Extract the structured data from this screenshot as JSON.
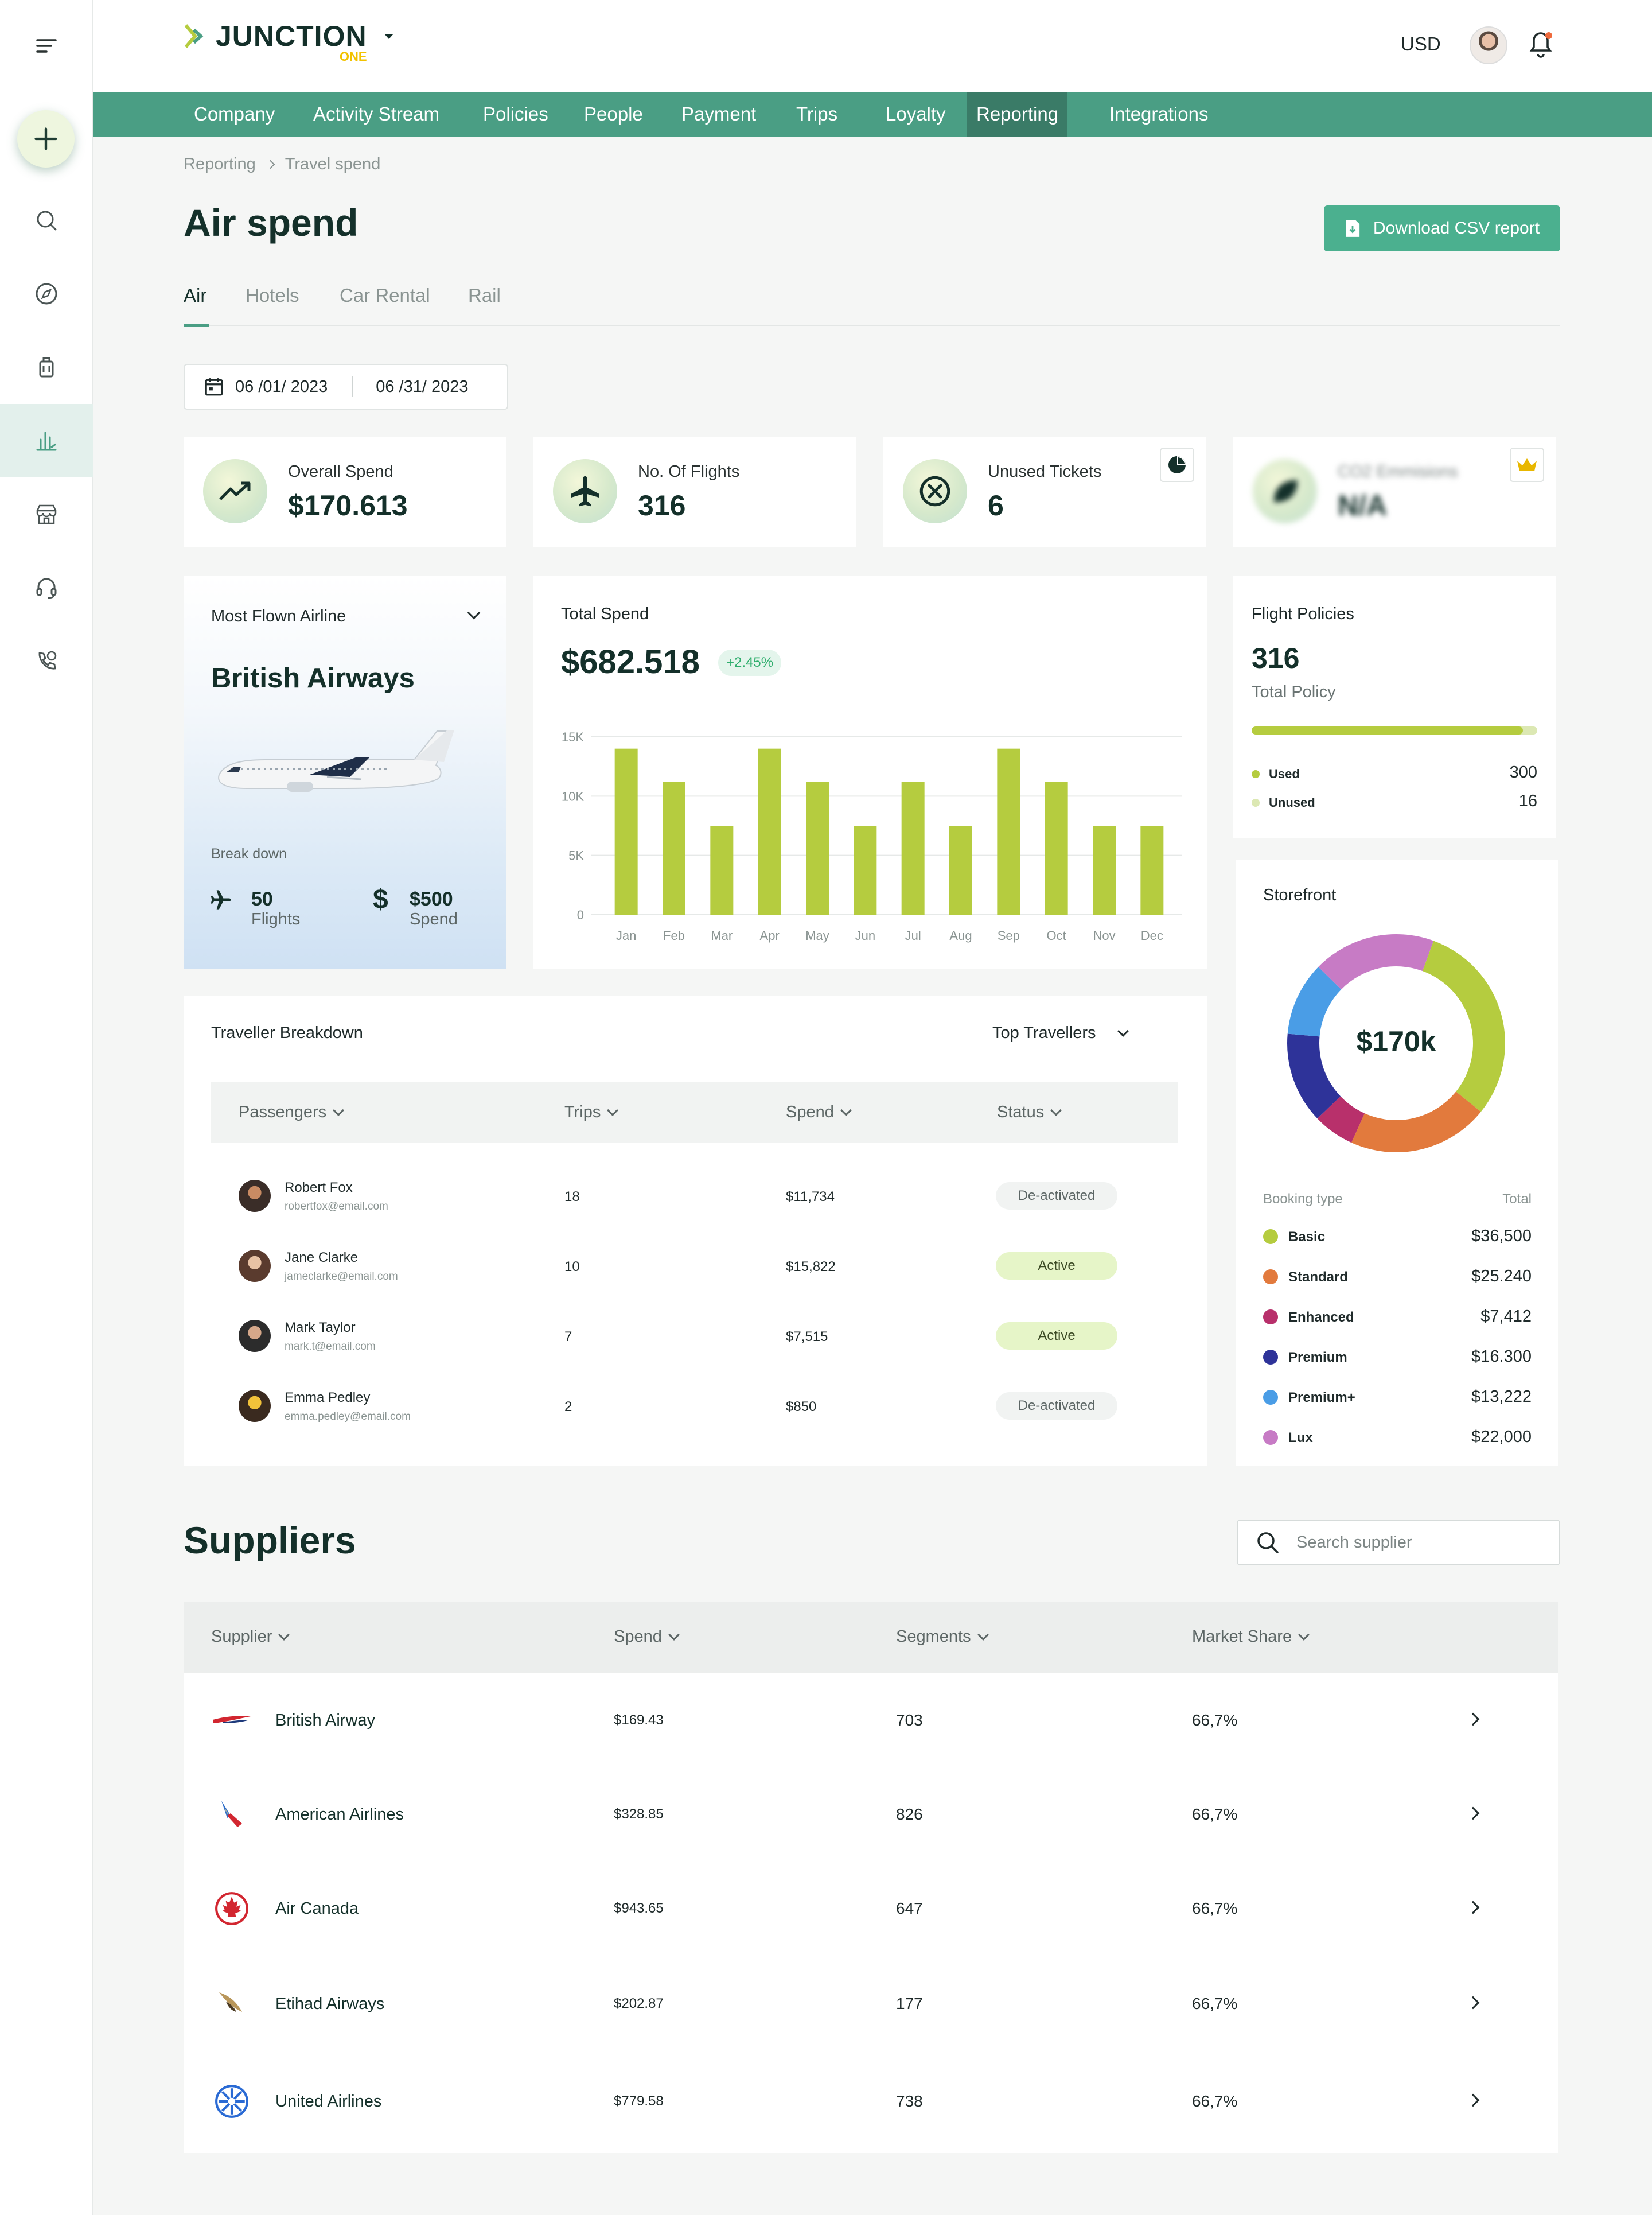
{
  "app": {
    "brand": "JUNCTION",
    "brand_sub": "ONE",
    "currency": "USD"
  },
  "nav": [
    "Company",
    "Activity Stream",
    "Policies",
    "People",
    "Payment",
    "Trips",
    "Loyalty",
    "Reporting",
    "Integrations"
  ],
  "breadcrumb": {
    "root": "Reporting",
    "current": "Travel spend"
  },
  "page": {
    "title": "Air spend",
    "download_label": "Download CSV report"
  },
  "tabs": [
    "Air",
    "Hotels",
    "Car Rental",
    "Rail"
  ],
  "dates": {
    "from": "06 /01/ 2023",
    "to": "06 /31/ 2023"
  },
  "kpis": [
    {
      "label": "Overall Spend",
      "value": "$170.613"
    },
    {
      "label": "No. Of Flights",
      "value": "316"
    },
    {
      "label": "Unused Tickets",
      "value": "6"
    },
    {
      "label": "CO2 Emmisions",
      "value": "N/A"
    }
  ],
  "airline": {
    "label": "Most Flown Airline",
    "name": "British Airways",
    "breakdown": "Break down",
    "flights_value": "50",
    "flights_label": "Flights",
    "spend_value": "$500",
    "spend_label": "Spend"
  },
  "total_spend": {
    "label": "Total Spend",
    "value": "$682.518",
    "change": "+2.45%"
  },
  "chart_data": {
    "type": "bar",
    "title": "Total Spend",
    "categories": [
      "Jan",
      "Feb",
      "Mar",
      "Apr",
      "May",
      "Jun",
      "Jul",
      "Aug",
      "Sep",
      "Oct",
      "Nov",
      "Dec"
    ],
    "values": [
      14000,
      11200,
      7500,
      14000,
      11200,
      7500,
      11200,
      7500,
      14000,
      11200,
      7500,
      7500
    ],
    "ylim": [
      0,
      15000
    ],
    "yticks": [
      {
        "v": 0,
        "label": "0"
      },
      {
        "v": 5000,
        "label": "5K"
      },
      {
        "v": 10000,
        "label": "10K"
      },
      {
        "v": 15000,
        "label": "15K"
      }
    ],
    "color": "#b5cc3f",
    "grid": true
  },
  "flight_policies": {
    "label": "Flight Policies",
    "value": "316",
    "sub": "Total Policy",
    "used_label": "Used",
    "used": 300,
    "unused_label": "Unused",
    "unused": 16,
    "used_color": "#b5cc3f",
    "unused_color": "#dce8b3"
  },
  "storefront": {
    "label": "Storefront",
    "center": "$170k",
    "col_type": "Booking type",
    "col_total": "Total",
    "items": [
      {
        "name": "Basic",
        "total": "$36,500",
        "value": 36500,
        "color": "#b5cc3f"
      },
      {
        "name": "Standard",
        "total": "$25.240",
        "value": 25240,
        "color": "#e27a3d"
      },
      {
        "name": "Enhanced",
        "total": "$7,412",
        "value": 7412,
        "color": "#b8306b"
      },
      {
        "name": "Premium",
        "total": "$16.300",
        "value": 16300,
        "color": "#2e3399"
      },
      {
        "name": "Premium+",
        "total": "$13,222",
        "value": 13222,
        "color": "#4a9de6"
      },
      {
        "name": "Lux",
        "total": "$22,000",
        "value": 22000,
        "color": "#c77bc5"
      }
    ]
  },
  "travellers": {
    "title": "Traveller Breakdown",
    "filter": "Top Travellers",
    "headers": [
      "Passengers",
      "Trips",
      "Spend",
      "Status"
    ],
    "rows": [
      {
        "name": "Robert Fox",
        "email": "robertfox@email.com",
        "trips": "18",
        "spend": "$11,734",
        "status": "De-activated",
        "active": false
      },
      {
        "name": "Jane Clarke",
        "email": "jameclarke@email.com",
        "trips": "10",
        "spend": "$15,822",
        "status": "Active",
        "active": true
      },
      {
        "name": "Mark Taylor",
        "email": "mark.t@email.com",
        "trips": "7",
        "spend": "$7,515",
        "status": "Active",
        "active": true
      },
      {
        "name": "Emma Pedley",
        "email": "emma.pedley@email.com",
        "trips": "2",
        "spend": "$850",
        "status": "De-activated",
        "active": false
      }
    ]
  },
  "suppliers": {
    "title": "Suppliers",
    "search_placeholder": "Search supplier",
    "headers": [
      "Supplier",
      "Spend",
      "Segments",
      "Market Share"
    ],
    "rows": [
      {
        "name": "British Airway",
        "spend": "$169.43",
        "segments": "703",
        "share": "66,7%"
      },
      {
        "name": "American Airlines",
        "spend": "$328.85",
        "segments": "826",
        "share": "66,7%"
      },
      {
        "name": "Air Canada",
        "spend": "$943.65",
        "segments": "647",
        "share": "66,7%"
      },
      {
        "name": "Etihad Airways",
        "spend": "$202.87",
        "segments": "177",
        "share": "66,7%"
      },
      {
        "name": "United Airlines",
        "spend": "$779.58",
        "segments": "738",
        "share": "66,7%"
      }
    ]
  }
}
